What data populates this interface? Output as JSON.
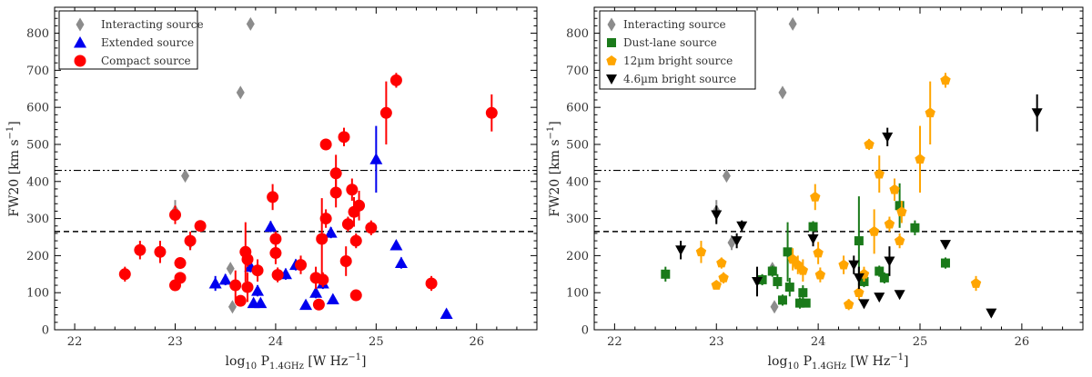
{
  "chart_data": [
    {
      "type": "scatter",
      "panel": "left",
      "xlabel": "log10 P1.4GHz [W Hz−1]",
      "ylabel": "FW20 [km s−1]",
      "xlim": [
        21.8,
        26.6
      ],
      "ylim": [
        0,
        870
      ],
      "xticks": [
        "22",
        "23",
        "24",
        "25",
        "26"
      ],
      "yticks": [
        "0",
        "100",
        "200",
        "300",
        "400",
        "500",
        "600",
        "700",
        "800"
      ],
      "reference_lines": [
        {
          "y": 265,
          "style": "dashed"
        },
        {
          "y": 430,
          "style": "dash-dot-dot"
        }
      ],
      "legend_position": "top-left",
      "series": [
        {
          "name": "Interacting source",
          "marker": "diamond",
          "color": "#8c8c8c",
          "points": [
            [
              23.0,
              320,
              30
            ],
            [
              23.1,
              415,
              10
            ],
            [
              23.15,
              235,
              20
            ],
            [
              23.55,
              165,
              10
            ],
            [
              23.57,
              62,
              10
            ],
            [
              23.65,
              640,
              10
            ],
            [
              23.75,
              825,
              10
            ]
          ]
        },
        {
          "name": "Extended source",
          "marker": "triangle",
          "color": "#0000ee",
          "points": [
            [
              23.4,
              125,
              20
            ],
            [
              23.5,
              135,
              15
            ],
            [
              23.75,
              170,
              15
            ],
            [
              23.78,
              72,
              10
            ],
            [
              23.82,
              105,
              15
            ],
            [
              23.85,
              72,
              10
            ],
            [
              23.95,
              278,
              15
            ],
            [
              24.1,
              150,
              15
            ],
            [
              24.2,
              175,
              15
            ],
            [
              24.3,
              67,
              10
            ],
            [
              24.4,
              100,
              15
            ],
            [
              24.47,
              125,
              15
            ],
            [
              24.55,
              262,
              15
            ],
            [
              24.57,
              82,
              10
            ],
            [
              25.0,
              460,
              90
            ],
            [
              25.2,
              228,
              10
            ],
            [
              25.25,
              180,
              15
            ],
            [
              25.7,
              43,
              10
            ]
          ]
        },
        {
          "name": "Compact source",
          "marker": "circle",
          "color": "#ff0000",
          "points": [
            [
              22.5,
              150,
              20
            ],
            [
              22.65,
              215,
              25
            ],
            [
              22.85,
              210,
              30
            ],
            [
              23.0,
              310,
              25
            ],
            [
              23.0,
              120,
              10
            ],
            [
              23.05,
              180,
              15
            ],
            [
              23.05,
              140,
              15
            ],
            [
              23.15,
              240,
              25
            ],
            [
              23.25,
              280,
              15
            ],
            [
              23.6,
              120,
              40
            ],
            [
              23.65,
              78,
              15
            ],
            [
              23.7,
              210,
              80
            ],
            [
              23.72,
              115,
              40
            ],
            [
              23.72,
              190,
              20
            ],
            [
              23.82,
              160,
              30
            ],
            [
              23.97,
              358,
              35
            ],
            [
              24.0,
              245,
              20
            ],
            [
              24.0,
              207,
              30
            ],
            [
              24.02,
              148,
              20
            ],
            [
              24.25,
              175,
              25
            ],
            [
              24.4,
              140,
              30
            ],
            [
              24.43,
              68,
              15
            ],
            [
              24.46,
              245,
              110
            ],
            [
              24.47,
              135,
              20
            ],
            [
              24.5,
              500,
              15
            ],
            [
              24.5,
              300,
              25
            ],
            [
              24.6,
              422,
              50
            ],
            [
              24.6,
              370,
              40
            ],
            [
              24.68,
              520,
              25
            ],
            [
              24.7,
              185,
              40
            ],
            [
              24.72,
              285,
              20
            ],
            [
              24.76,
              378,
              30
            ],
            [
              24.78,
              318,
              40
            ],
            [
              24.8,
              240,
              20
            ],
            [
              24.8,
              93,
              15
            ],
            [
              24.83,
              335,
              40
            ],
            [
              24.95,
              275,
              20
            ],
            [
              25.1,
              585,
              85
            ],
            [
              25.2,
              673,
              20
            ],
            [
              25.55,
              125,
              20
            ],
            [
              26.15,
              585,
              50
            ]
          ]
        }
      ]
    },
    {
      "type": "scatter",
      "panel": "right",
      "xlabel": "log10 P1.4GHz [W Hz−1]",
      "ylabel": "FW20 [km s−1]",
      "xlim": [
        21.8,
        26.6
      ],
      "ylim": [
        0,
        870
      ],
      "xticks": [
        "22",
        "23",
        "24",
        "25",
        "26"
      ],
      "yticks": [
        "0",
        "100",
        "200",
        "300",
        "400",
        "500",
        "600",
        "700",
        "800"
      ],
      "reference_lines": [
        {
          "y": 265,
          "style": "dashed"
        },
        {
          "y": 430,
          "style": "dash-dot-dot"
        }
      ],
      "legend_position": "top-left",
      "series": [
        {
          "name": "Interacting source",
          "marker": "diamond",
          "color": "#8c8c8c",
          "points": [
            [
              23.0,
              320,
              30
            ],
            [
              23.1,
              415,
              10
            ],
            [
              23.15,
              235,
              20
            ],
            [
              23.55,
              165,
              10
            ],
            [
              23.57,
              62,
              10
            ],
            [
              23.65,
              640,
              10
            ],
            [
              23.75,
              825,
              10
            ]
          ]
        },
        {
          "name": "Dust-lane source",
          "marker": "square",
          "color": "#1a7a1a",
          "points": [
            [
              22.5,
              150,
              20
            ],
            [
              23.45,
              135,
              15
            ],
            [
              23.55,
              158,
              15
            ],
            [
              23.6,
              130,
              20
            ],
            [
              23.65,
              80,
              15
            ],
            [
              23.7,
              210,
              80
            ],
            [
              23.72,
              115,
              25
            ],
            [
              23.82,
              72,
              15
            ],
            [
              23.85,
              100,
              20
            ],
            [
              23.88,
              72,
              10
            ],
            [
              23.95,
              278,
              15
            ],
            [
              24.4,
              240,
              120
            ],
            [
              24.45,
              130,
              15
            ],
            [
              24.6,
              158,
              15
            ],
            [
              24.65,
              140,
              15
            ],
            [
              24.8,
              335,
              60
            ],
            [
              24.95,
              275,
              20
            ],
            [
              25.25,
              180,
              15
            ]
          ]
        },
        {
          "name": "12µm bright source",
          "marker": "pentagon",
          "color": "#ffa500",
          "points": [
            [
              22.85,
              210,
              30
            ],
            [
              23.0,
              120,
              10
            ],
            [
              23.05,
              180,
              15
            ],
            [
              23.07,
              140,
              15
            ],
            [
              23.75,
              190,
              30
            ],
            [
              23.8,
              175,
              25
            ],
            [
              23.85,
              160,
              30
            ],
            [
              23.97,
              358,
              35
            ],
            [
              24.0,
              207,
              30
            ],
            [
              24.02,
              148,
              20
            ],
            [
              24.25,
              175,
              25
            ],
            [
              24.3,
              68,
              15
            ],
            [
              24.4,
              100,
              20
            ],
            [
              24.45,
              150,
              20
            ],
            [
              24.5,
              500,
              15
            ],
            [
              24.55,
              265,
              60
            ],
            [
              24.6,
              420,
              50
            ],
            [
              24.7,
              285,
              20
            ],
            [
              24.75,
              378,
              30
            ],
            [
              24.8,
              240,
              20
            ],
            [
              24.82,
              318,
              30
            ],
            [
              25.0,
              460,
              90
            ],
            [
              25.1,
              585,
              85
            ],
            [
              25.25,
              673,
              20
            ],
            [
              25.55,
              125,
              20
            ]
          ]
        },
        {
          "name": "4.6µm bright source",
          "marker": "triangle-down",
          "color": "#000000",
          "points": [
            [
              22.65,
              215,
              25
            ],
            [
              23.0,
              310,
              25
            ],
            [
              23.2,
              240,
              20
            ],
            [
              23.25,
              280,
              15
            ],
            [
              23.4,
              130,
              40
            ],
            [
              23.95,
              245,
              20
            ],
            [
              24.35,
              175,
              25
            ],
            [
              24.4,
              140,
              30
            ],
            [
              24.45,
              70,
              10
            ],
            [
              24.6,
              88,
              10
            ],
            [
              24.68,
              520,
              25
            ],
            [
              24.7,
              185,
              40
            ],
            [
              24.8,
              95,
              10
            ],
            [
              25.25,
              230,
              10
            ],
            [
              25.7,
              45,
              10
            ],
            [
              26.15,
              585,
              50
            ]
          ]
        }
      ]
    }
  ],
  "legend_labels": {
    "left": [
      "Interacting source",
      "Extended source",
      "Compact source"
    ],
    "right": [
      "Interacting source",
      "Dust-lane source",
      "12µm bright source",
      "4.6µm bright source"
    ]
  },
  "axis_text": {
    "xlabel_main": "log",
    "xlabel_sub10": "10",
    "xlabel_p": " P",
    "xlabel_sub": "1.4GHz",
    "xlabel_unit": " [W Hz",
    "xlabel_exp": "−1",
    "xlabel_close": "]",
    "ylabel_main": "FW20 [km s",
    "ylabel_exp": "−1",
    "ylabel_close": "]"
  }
}
